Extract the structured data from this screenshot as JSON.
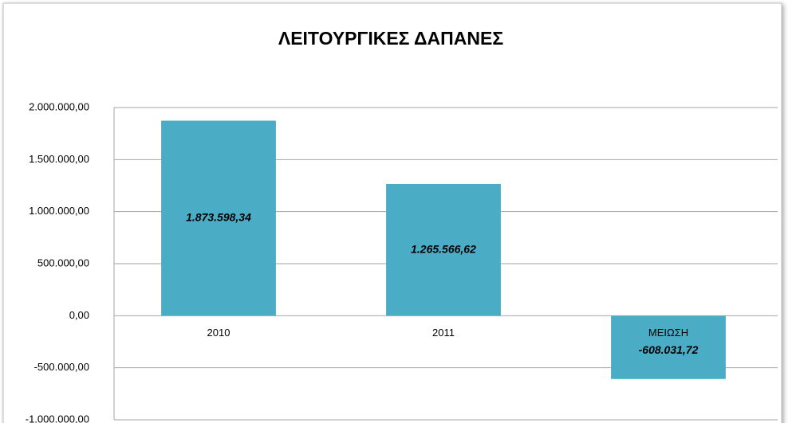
{
  "chart_data": {
    "type": "bar",
    "title": "ΛΕΙΤΟΥΡΓΙΚΕΣ ΔΑΠΑΝΕΣ",
    "categories": [
      "2010",
      "2011",
      "ΜΕΙΩΣΗ"
    ],
    "values": [
      1873598.34,
      1265566.62,
      -608031.72
    ],
    "value_labels": [
      "1.873.598,34",
      "1.265.566,62",
      "-608.031,72"
    ],
    "color": "#4bacc6",
    "ylim": [
      -1000000,
      2000000
    ],
    "yticks": [
      {
        "value": -1000000,
        "label": "-1.000.000,00"
      },
      {
        "value": -500000,
        "label": "-500.000,00"
      },
      {
        "value": 0,
        "label": "0,00"
      },
      {
        "value": 500000,
        "label": "500.000,00"
      },
      {
        "value": 1000000,
        "label": "1.000.000,00"
      },
      {
        "value": 1500000,
        "label": "1.500.000,00"
      },
      {
        "value": 2000000,
        "label": "2.000.000,00"
      }
    ],
    "grid": true
  }
}
